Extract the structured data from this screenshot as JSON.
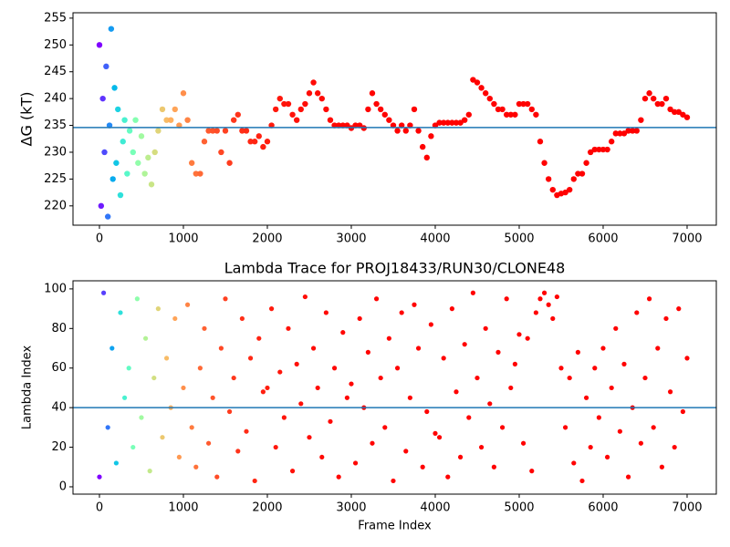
{
  "chart_data": [
    {
      "type": "scatter",
      "ylabel": "ΔG (kT)",
      "colormap": "rainbow_r",
      "hline": 234.6,
      "hline_color": "#1f77b4",
      "xlim": [
        -315,
        7348
      ],
      "ylim": [
        216.4,
        256
      ],
      "xticks": [
        0,
        1000,
        2000,
        3000,
        4000,
        5000,
        6000,
        7000
      ],
      "yticks": [
        220,
        225,
        230,
        235,
        240,
        245,
        250,
        255
      ],
      "x": [
        0,
        20,
        40,
        60,
        80,
        100,
        120,
        140,
        160,
        180,
        200,
        220,
        250,
        280,
        300,
        330,
        360,
        400,
        430,
        460,
        500,
        540,
        580,
        620,
        660,
        700,
        750,
        800,
        850,
        900,
        950,
        1000,
        1050,
        1100,
        1150,
        1200,
        1250,
        1300,
        1350,
        1400,
        1450,
        1500,
        1550,
        1600,
        1650,
        1700,
        1750,
        1800,
        1850,
        1900,
        1950,
        2000,
        2050,
        2100,
        2150,
        2200,
        2250,
        2300,
        2350,
        2400,
        2450,
        2500,
        2550,
        2600,
        2650,
        2700,
        2750,
        2800,
        2850,
        2900,
        2950,
        3000,
        3050,
        3100,
        3150,
        3200,
        3250,
        3300,
        3350,
        3400,
        3450,
        3500,
        3550,
        3600,
        3650,
        3700,
        3750,
        3800,
        3850,
        3900,
        3950,
        4000,
        4050,
        4100,
        4150,
        4200,
        4250,
        4300,
        4350,
        4400,
        4450,
        4500,
        4550,
        4600,
        4650,
        4700,
        4750,
        4800,
        4850,
        4900,
        4950,
        5000,
        5050,
        5100,
        5150,
        5200,
        5250,
        5300,
        5350,
        5400,
        5450,
        5500,
        5550,
        5600,
        5650,
        5700,
        5750,
        5800,
        5850,
        5900,
        5950,
        6000,
        6050,
        6100,
        6150,
        6200,
        6250,
        6300,
        6350,
        6400,
        6450,
        6500,
        6550,
        6600,
        6650,
        6700,
        6750,
        6800,
        6850,
        6900,
        6950,
        7000
      ],
      "values": [
        250,
        220,
        240,
        230,
        246,
        218,
        235,
        253,
        225,
        242,
        228,
        238,
        222,
        232,
        236,
        226,
        234,
        230,
        236,
        228,
        233,
        226,
        229,
        224,
        230,
        234,
        238,
        236,
        236,
        238,
        235,
        241,
        236,
        228,
        226,
        226,
        232,
        234,
        234,
        234,
        230,
        234,
        228,
        236,
        237,
        234,
        234,
        232,
        232,
        233,
        231,
        232,
        235,
        238,
        240,
        239,
        239,
        237,
        236,
        238,
        239,
        241,
        243,
        241,
        240,
        238,
        236,
        235,
        235,
        235,
        235,
        234.5,
        235,
        235,
        234.5,
        238,
        241,
        239,
        238,
        237,
        236,
        235,
        234,
        235,
        234,
        235,
        238,
        234,
        231,
        229,
        233,
        235,
        235.5,
        235.5,
        235.5,
        235.5,
        235.5,
        235.5,
        236,
        237,
        243.5,
        243,
        242,
        241,
        240,
        239,
        238,
        238,
        237,
        237,
        237,
        239,
        239,
        239,
        238,
        237,
        232,
        228,
        225,
        223,
        222,
        222.3,
        222.5,
        223,
        225,
        226,
        226,
        228,
        230,
        230.5,
        230.5,
        230.5,
        230.5,
        232,
        233.5,
        233.5,
        233.5,
        234,
        234,
        234,
        236,
        240,
        241,
        240,
        239,
        239,
        240,
        238,
        237.5,
        237.5,
        237,
        236.5
      ]
    },
    {
      "type": "scatter",
      "title": "Lambda Trace for PROJ18433/RUN30/CLONE48",
      "xlabel": "Frame Index",
      "ylabel": "Lambda Index",
      "colormap": "rainbow_r",
      "hline": 40,
      "hline_color": "#1f77b4",
      "xlim": [
        -315,
        7348
      ],
      "ylim": [
        -3.7,
        104.1
      ],
      "xticks": [
        0,
        1000,
        2000,
        3000,
        4000,
        5000,
        6000,
        7000
      ],
      "yticks": [
        0,
        20,
        40,
        60,
        80,
        100
      ],
      "x": [
        0,
        50,
        100,
        150,
        200,
        250,
        300,
        350,
        400,
        450,
        500,
        550,
        600,
        650,
        700,
        750,
        800,
        850,
        900,
        950,
        1000,
        1050,
        1100,
        1150,
        1200,
        1250,
        1300,
        1350,
        1400,
        1450,
        1500,
        1550,
        1600,
        1650,
        1700,
        1750,
        1800,
        1850,
        1900,
        1950,
        2000,
        2050,
        2100,
        2150,
        2200,
        2250,
        2300,
        2350,
        2400,
        2450,
        2500,
        2550,
        2600,
        2650,
        2700,
        2750,
        2800,
        2850,
        2900,
        2950,
        3000,
        3050,
        3100,
        3150,
        3200,
        3250,
        3300,
        3350,
        3400,
        3450,
        3500,
        3550,
        3600,
        3650,
        3700,
        3750,
        3800,
        3850,
        3900,
        3950,
        4000,
        4050,
        4100,
        4150,
        4200,
        4250,
        4300,
        4350,
        4400,
        4450,
        4500,
        4550,
        4600,
        4650,
        4700,
        4750,
        4800,
        4850,
        4900,
        4950,
        5000,
        5050,
        5100,
        5150,
        5200,
        5250,
        5300,
        5350,
        5400,
        5450,
        5500,
        5550,
        5600,
        5650,
        5700,
        5750,
        5800,
        5850,
        5900,
        5950,
        6000,
        6050,
        6100,
        6150,
        6200,
        6250,
        6300,
        6350,
        6400,
        6450,
        6500,
        6550,
        6600,
        6650,
        6700,
        6750,
        6800,
        6850,
        6900,
        6950,
        7000
      ],
      "values": [
        5,
        98,
        30,
        70,
        12,
        88,
        45,
        60,
        20,
        95,
        35,
        75,
        8,
        55,
        90,
        25,
        65,
        40,
        85,
        15,
        50,
        92,
        30,
        10,
        60,
        80,
        22,
        45,
        5,
        70,
        95,
        38,
        55,
        18,
        85,
        28,
        65,
        3,
        75,
        48,
        50,
        90,
        20,
        58,
        35,
        80,
        8,
        62,
        42,
        96,
        25,
        70,
        50,
        15,
        88,
        33,
        60,
        5,
        78,
        45,
        52,
        12,
        85,
        40,
        68,
        22,
        95,
        55,
        30,
        75,
        3,
        60,
        88,
        18,
        45,
        92,
        70,
        10,
        38,
        82,
        27,
        25,
        65,
        5,
        90,
        48,
        15,
        72,
        35,
        98,
        55,
        20,
        80,
        42,
        10,
        68,
        30,
        95,
        50,
        62,
        77,
        22,
        75,
        8,
        88,
        95,
        98,
        92,
        85,
        96,
        60,
        30,
        55,
        12,
        68,
        3,
        45,
        20,
        60,
        35,
        70,
        15,
        50,
        80,
        28,
        62,
        5,
        40,
        88,
        22,
        55,
        95,
        30,
        70,
        10,
        85,
        48,
        20,
        90,
        38,
        65
      ]
    }
  ]
}
